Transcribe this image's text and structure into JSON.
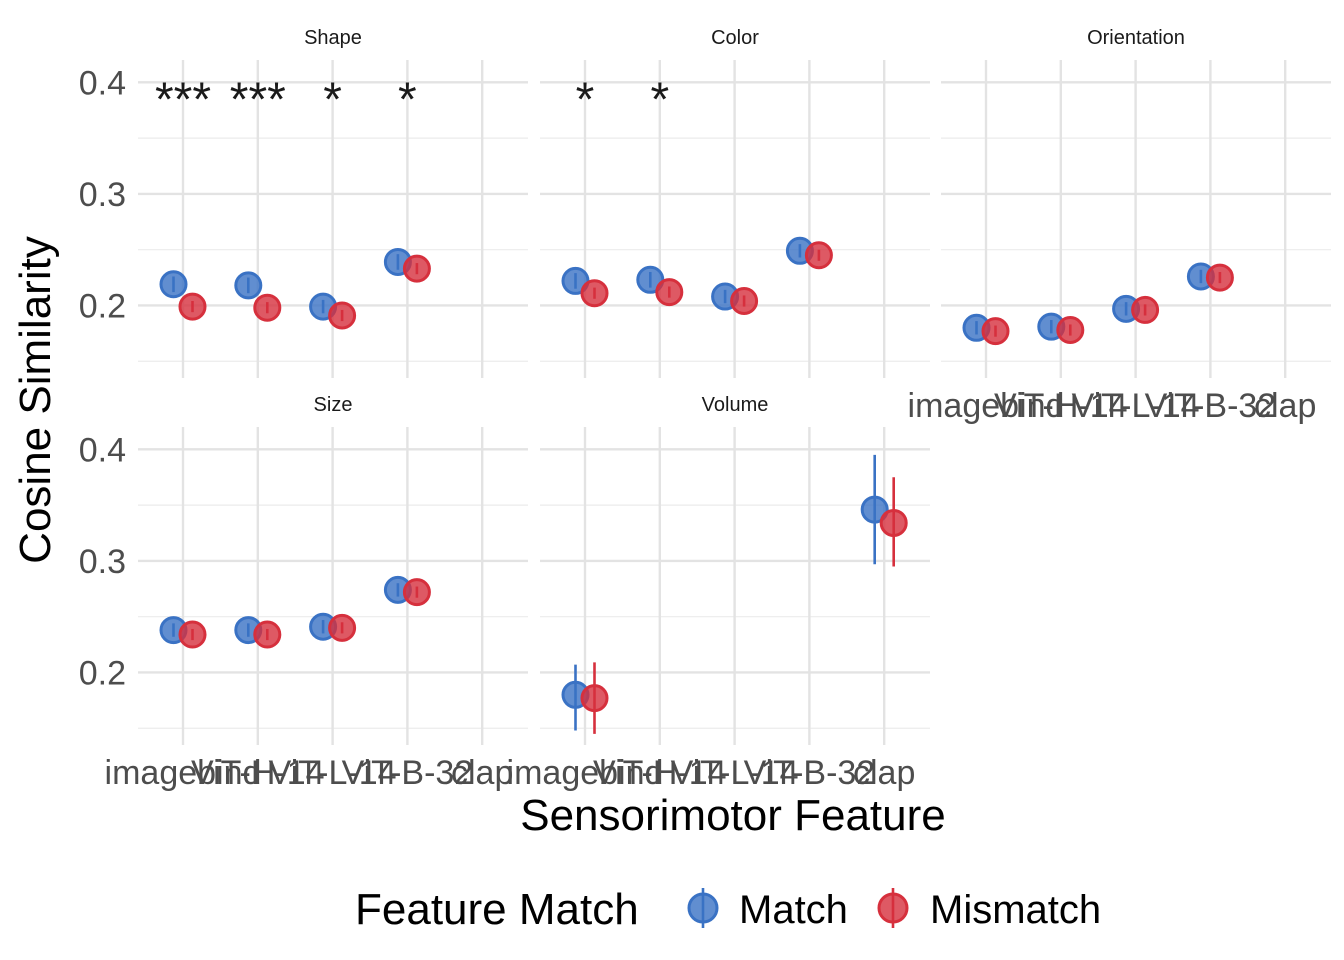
{
  "chart_data": {
    "type": "scatter",
    "subtype": "faceted point-range",
    "xlabel": "Sensorimotor Feature",
    "ylabel": "Cosine Similarity",
    "categories": [
      "imagebind",
      "ViT-H-14",
      "ViT-L-14",
      "ViT-B-32",
      "clap"
    ],
    "ylim": [
      0.135,
      0.42
    ],
    "y_ticks": [
      0.2,
      0.3,
      0.4
    ],
    "y_tick_labels": [
      "0.2",
      "0.3",
      "0.4"
    ],
    "grid": true,
    "legend": {
      "title": "Feature Match",
      "position": "bottom",
      "entries": [
        {
          "label": "Match",
          "color": "#3a72c4"
        },
        {
          "label": "Mismatch",
          "color": "#d6303d"
        }
      ]
    },
    "facets": [
      {
        "name": "Shape",
        "series": [
          {
            "name": "Match",
            "color": "#3a72c4",
            "points": [
              {
                "x": "imagebind",
                "y": 0.219,
                "err_low": 0.212,
                "err_high": 0.226
              },
              {
                "x": "ViT-H-14",
                "y": 0.218,
                "err_low": 0.211,
                "err_high": 0.225
              },
              {
                "x": "ViT-L-14",
                "y": 0.199,
                "err_low": 0.193,
                "err_high": 0.205
              },
              {
                "x": "ViT-B-32",
                "y": 0.239,
                "err_low": 0.232,
                "err_high": 0.246
              }
            ]
          },
          {
            "name": "Mismatch",
            "color": "#d6303d",
            "points": [
              {
                "x": "imagebind",
                "y": 0.199,
                "err_low": 0.194,
                "err_high": 0.204
              },
              {
                "x": "ViT-H-14",
                "y": 0.198,
                "err_low": 0.193,
                "err_high": 0.203
              },
              {
                "x": "ViT-L-14",
                "y": 0.191,
                "err_low": 0.186,
                "err_high": 0.196
              },
              {
                "x": "ViT-B-32",
                "y": 0.233,
                "err_low": 0.228,
                "err_high": 0.238
              }
            ]
          }
        ],
        "annotations": [
          {
            "x": "imagebind",
            "text": "***"
          },
          {
            "x": "ViT-H-14",
            "text": "***"
          },
          {
            "x": "ViT-L-14",
            "text": "*"
          },
          {
            "x": "ViT-B-32",
            "text": "*"
          }
        ]
      },
      {
        "name": "Color",
        "series": [
          {
            "name": "Match",
            "color": "#3a72c4",
            "points": [
              {
                "x": "imagebind",
                "y": 0.222,
                "err_low": 0.215,
                "err_high": 0.229
              },
              {
                "x": "ViT-H-14",
                "y": 0.223,
                "err_low": 0.216,
                "err_high": 0.23
              },
              {
                "x": "ViT-L-14",
                "y": 0.208,
                "err_low": 0.202,
                "err_high": 0.214
              },
              {
                "x": "ViT-B-32",
                "y": 0.249,
                "err_low": 0.243,
                "err_high": 0.255
              }
            ]
          },
          {
            "name": "Mismatch",
            "color": "#d6303d",
            "points": [
              {
                "x": "imagebind",
                "y": 0.211,
                "err_low": 0.206,
                "err_high": 0.216
              },
              {
                "x": "ViT-H-14",
                "y": 0.212,
                "err_low": 0.207,
                "err_high": 0.217
              },
              {
                "x": "ViT-L-14",
                "y": 0.204,
                "err_low": 0.199,
                "err_high": 0.209
              },
              {
                "x": "ViT-B-32",
                "y": 0.245,
                "err_low": 0.24,
                "err_high": 0.25
              }
            ]
          }
        ],
        "annotations": [
          {
            "x": "imagebind",
            "text": "*"
          },
          {
            "x": "ViT-H-14",
            "text": "*"
          }
        ]
      },
      {
        "name": "Orientation",
        "series": [
          {
            "name": "Match",
            "color": "#3a72c4",
            "points": [
              {
                "x": "imagebind",
                "y": 0.18,
                "err_low": 0.174,
                "err_high": 0.186
              },
              {
                "x": "ViT-H-14",
                "y": 0.181,
                "err_low": 0.175,
                "err_high": 0.187
              },
              {
                "x": "ViT-L-14",
                "y": 0.197,
                "err_low": 0.191,
                "err_high": 0.203
              },
              {
                "x": "ViT-B-32",
                "y": 0.226,
                "err_low": 0.22,
                "err_high": 0.232
              }
            ]
          },
          {
            "name": "Mismatch",
            "color": "#d6303d",
            "points": [
              {
                "x": "imagebind",
                "y": 0.177,
                "err_low": 0.172,
                "err_high": 0.182
              },
              {
                "x": "ViT-H-14",
                "y": 0.178,
                "err_low": 0.173,
                "err_high": 0.183
              },
              {
                "x": "ViT-L-14",
                "y": 0.196,
                "err_low": 0.191,
                "err_high": 0.201
              },
              {
                "x": "ViT-B-32",
                "y": 0.225,
                "err_low": 0.22,
                "err_high": 0.23
              }
            ]
          }
        ],
        "annotations": []
      },
      {
        "name": "Size",
        "series": [
          {
            "name": "Match",
            "color": "#3a72c4",
            "points": [
              {
                "x": "imagebind",
                "y": 0.238,
                "err_low": 0.232,
                "err_high": 0.244
              },
              {
                "x": "ViT-H-14",
                "y": 0.238,
                "err_low": 0.232,
                "err_high": 0.244
              },
              {
                "x": "ViT-L-14",
                "y": 0.241,
                "err_low": 0.235,
                "err_high": 0.247
              },
              {
                "x": "ViT-B-32",
                "y": 0.274,
                "err_low": 0.268,
                "err_high": 0.28
              }
            ]
          },
          {
            "name": "Mismatch",
            "color": "#d6303d",
            "points": [
              {
                "x": "imagebind",
                "y": 0.234,
                "err_low": 0.229,
                "err_high": 0.239
              },
              {
                "x": "ViT-H-14",
                "y": 0.234,
                "err_low": 0.229,
                "err_high": 0.239
              },
              {
                "x": "ViT-L-14",
                "y": 0.24,
                "err_low": 0.235,
                "err_high": 0.245
              },
              {
                "x": "ViT-B-32",
                "y": 0.272,
                "err_low": 0.267,
                "err_high": 0.277
              }
            ]
          }
        ],
        "annotations": []
      },
      {
        "name": "Volume",
        "series": [
          {
            "name": "Match",
            "color": "#3a72c4",
            "points": [
              {
                "x": "imagebind",
                "y": 0.18,
                "err_low": 0.148,
                "err_high": 0.207
              },
              {
                "x": "clap",
                "y": 0.346,
                "err_low": 0.297,
                "err_high": 0.395
              }
            ]
          },
          {
            "name": "Mismatch",
            "color": "#d6303d",
            "points": [
              {
                "x": "imagebind",
                "y": 0.177,
                "err_low": 0.145,
                "err_high": 0.209
              },
              {
                "x": "clap",
                "y": 0.334,
                "err_low": 0.295,
                "err_high": 0.375
              }
            ]
          }
        ],
        "annotations": []
      }
    ]
  }
}
